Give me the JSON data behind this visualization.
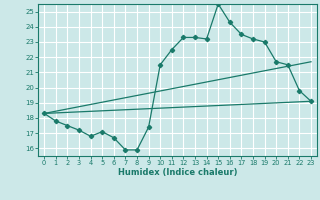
{
  "xlabel": "Humidex (Indice chaleur)",
  "background_color": "#cce8e8",
  "grid_color": "#ffffff",
  "line_color": "#1a7a6a",
  "x_ticks": [
    0,
    1,
    2,
    3,
    4,
    5,
    6,
    7,
    8,
    9,
    10,
    11,
    12,
    13,
    14,
    15,
    16,
    17,
    18,
    19,
    20,
    21,
    22,
    23
  ],
  "y_ticks": [
    16,
    17,
    18,
    19,
    20,
    21,
    22,
    23,
    24,
    25
  ],
  "xlim": [
    -0.5,
    23.5
  ],
  "ylim": [
    15.5,
    25.5
  ],
  "line1_x": [
    0,
    1,
    2,
    3,
    4,
    5,
    6,
    7,
    8,
    9,
    10,
    11,
    12,
    13,
    14,
    15,
    16,
    17,
    18,
    19,
    20,
    21,
    22,
    23
  ],
  "line1_y": [
    18.3,
    17.8,
    17.5,
    17.2,
    16.8,
    17.1,
    16.7,
    15.9,
    15.9,
    17.4,
    21.5,
    22.5,
    23.3,
    23.3,
    23.2,
    25.5,
    24.3,
    23.5,
    23.2,
    23.0,
    21.7,
    21.5,
    19.8,
    19.1
  ],
  "line2_x": [
    0,
    23
  ],
  "line2_y": [
    18.3,
    19.1
  ],
  "line3_x": [
    0,
    23
  ],
  "line3_y": [
    18.3,
    21.7
  ]
}
